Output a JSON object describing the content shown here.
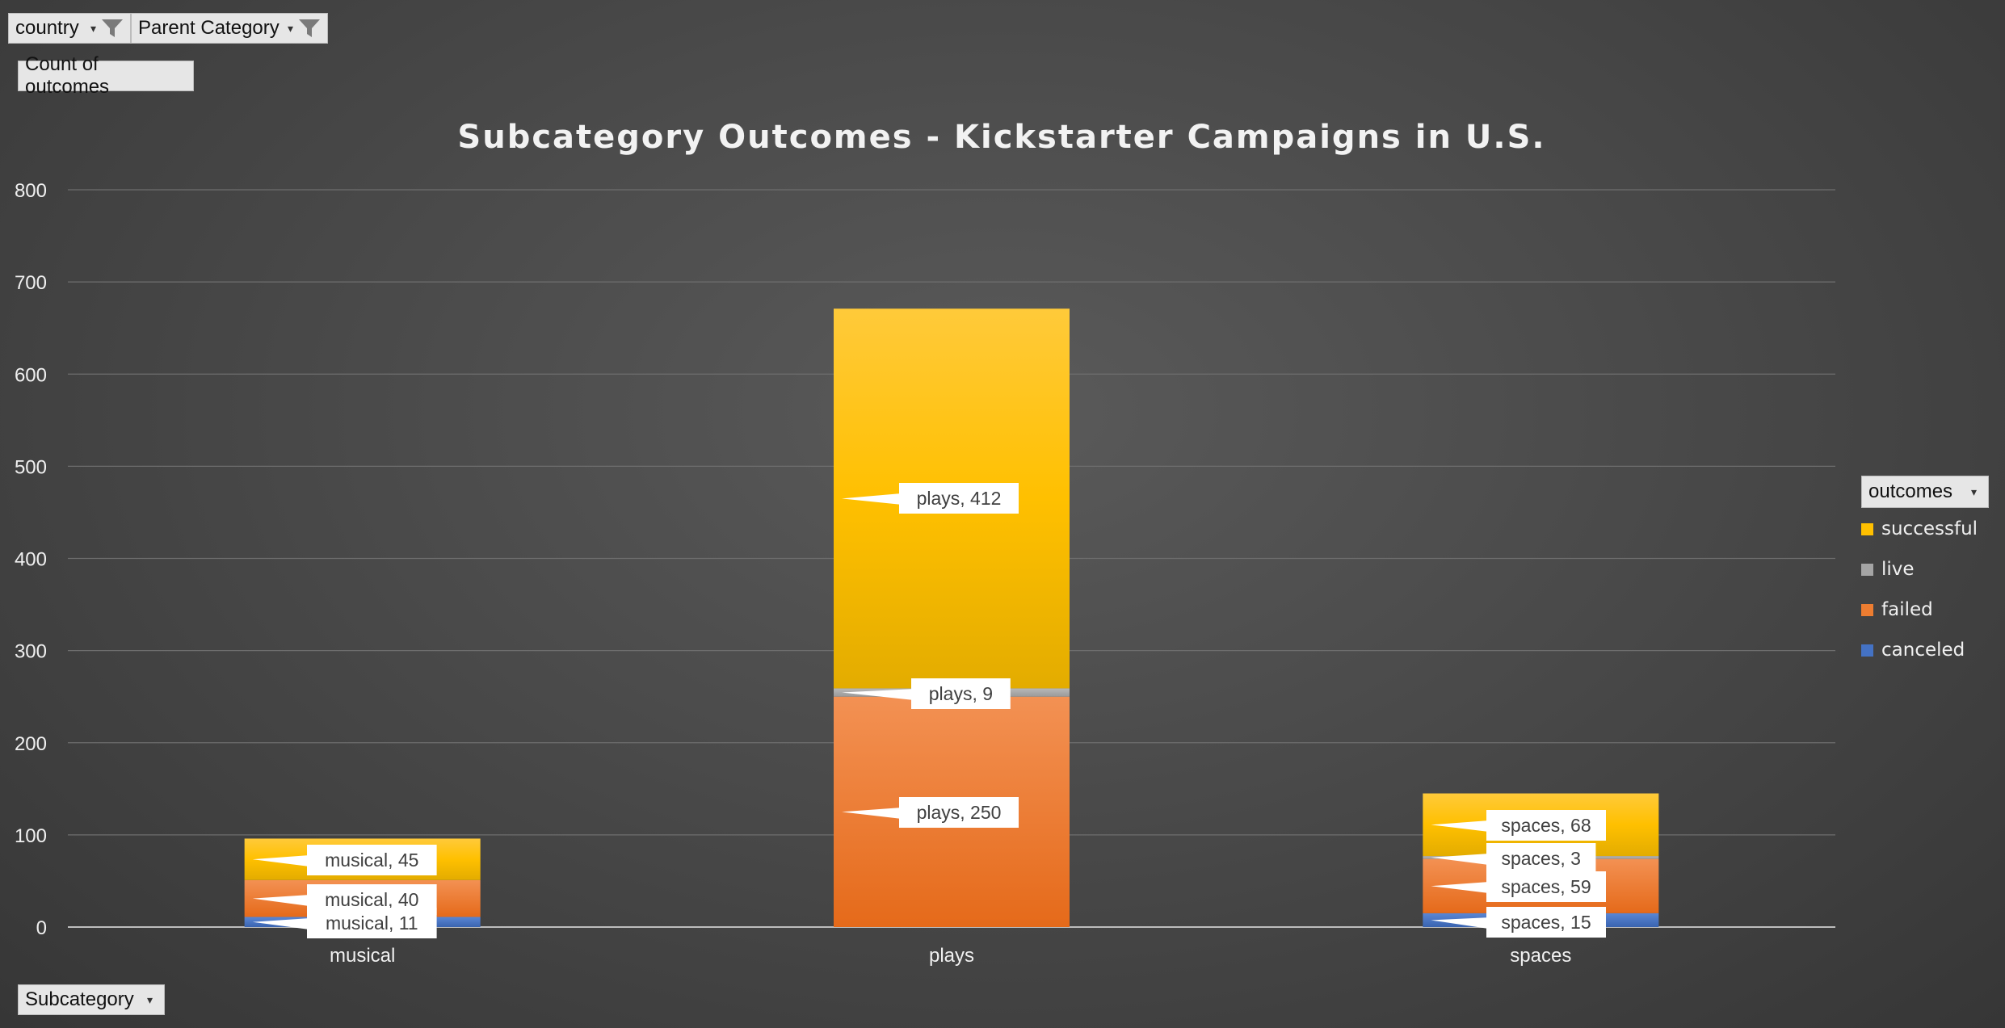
{
  "filters": {
    "country": "country",
    "parent_category": "Parent Category",
    "values_field": "Count of outcomes",
    "axis_field": "Subcategory",
    "legend_field": "outcomes"
  },
  "chart_data": {
    "type": "bar",
    "stacked": true,
    "title": "Subcategory Outcomes - Kickstarter Campaigns in U.S.",
    "categories": [
      "musical",
      "plays",
      "spaces"
    ],
    "ylim": [
      0,
      800
    ],
    "yticks": [
      0,
      100,
      200,
      300,
      400,
      500,
      600,
      700,
      800
    ],
    "grid": true,
    "legend_position": "right",
    "series": [
      {
        "name": "canceled",
        "color": "#4472c4",
        "values": [
          11,
          0,
          15
        ]
      },
      {
        "name": "failed",
        "color": "#ed7d31",
        "values": [
          40,
          250,
          59
        ]
      },
      {
        "name": "live",
        "color": "#a5a5a5",
        "values": [
          0,
          9,
          3
        ]
      },
      {
        "name": "successful",
        "color": "#ffc000",
        "values": [
          45,
          412,
          68
        ]
      }
    ],
    "data_labels": [
      {
        "text": "musical, 45",
        "cat": 0,
        "series": "successful"
      },
      {
        "text": "musical, 40",
        "cat": 0,
        "series": "failed"
      },
      {
        "text": "musical, 11",
        "cat": 0,
        "series": "canceled"
      },
      {
        "text": "plays, 412",
        "cat": 1,
        "series": "successful"
      },
      {
        "text": "plays, 9",
        "cat": 1,
        "series": "live"
      },
      {
        "text": "plays, 250",
        "cat": 1,
        "series": "failed"
      },
      {
        "text": "spaces, 68",
        "cat": 2,
        "series": "successful"
      },
      {
        "text": "spaces, 3",
        "cat": 2,
        "series": "live"
      },
      {
        "text": "spaces, 59",
        "cat": 2,
        "series": "failed"
      },
      {
        "text": "spaces, 15",
        "cat": 2,
        "series": "canceled"
      }
    ],
    "legend_order": [
      "successful",
      "live",
      "failed",
      "canceled"
    ]
  }
}
